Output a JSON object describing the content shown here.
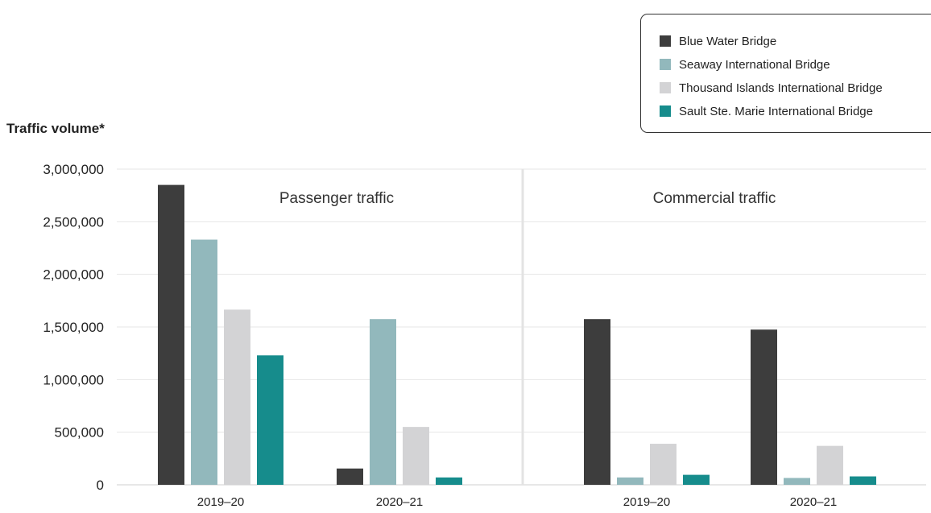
{
  "chart_data": {
    "type": "bar",
    "ylabel": "Traffic volume*",
    "ylim": [
      0,
      3000000
    ],
    "yticks": [
      0,
      500000,
      1000000,
      1500000,
      2000000,
      2500000,
      3000000
    ],
    "ytick_labels": [
      "0",
      "500,000",
      "1,000,000",
      "1,500,000",
      "2,000,000",
      "2,500,000",
      "3,000,000"
    ],
    "grid": true,
    "legend_position": "top-right",
    "panels": [
      {
        "title": "Passenger traffic",
        "categories": [
          "2019–20",
          "2020–21"
        ],
        "series": [
          {
            "name": "Blue Water Bridge",
            "color": "#3d3d3d",
            "values": [
              2850000,
              155000
            ]
          },
          {
            "name": "Seaway International Bridge",
            "color": "#92b8bc",
            "values": [
              2330000,
              1575000
            ]
          },
          {
            "name": "Thousand Islands International Bridge",
            "color": "#d3d3d5",
            "values": [
              1665000,
              550000
            ]
          },
          {
            "name": "Sault Ste. Marie International Bridge",
            "color": "#168c8c",
            "values": [
              1230000,
              70000
            ]
          }
        ]
      },
      {
        "title": "Commercial traffic",
        "categories": [
          "2019–20",
          "2020–21"
        ],
        "series": [
          {
            "name": "Blue Water Bridge",
            "color": "#3d3d3d",
            "values": [
              1575000,
              1475000
            ]
          },
          {
            "name": "Seaway International Bridge",
            "color": "#92b8bc",
            "values": [
              70000,
              65000
            ]
          },
          {
            "name": "Thousand Islands International Bridge",
            "color": "#d3d3d5",
            "values": [
              390000,
              370000
            ]
          },
          {
            "name": "Sault Ste. Marie International Bridge",
            "color": "#168c8c",
            "values": [
              95000,
              80000
            ]
          }
        ]
      }
    ]
  },
  "legend": {
    "items": [
      {
        "label": "Blue Water Bridge",
        "color": "#3d3d3d"
      },
      {
        "label": "Seaway International Bridge",
        "color": "#92b8bc"
      },
      {
        "label": "Thousand Islands International Bridge",
        "color": "#d3d3d5"
      },
      {
        "label": "Sault Ste. Marie International Bridge",
        "color": "#168c8c"
      }
    ]
  }
}
